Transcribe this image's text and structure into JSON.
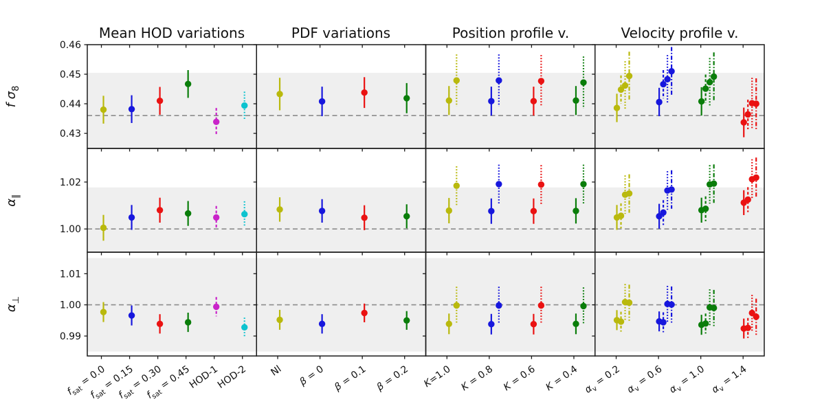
{
  "chart_data": {
    "type": "scatter",
    "title": "",
    "description": "Grid of error-bar points: 3 parameter rows x 4 variation columns, gray 1-sigma band and dashed fiducial line per row",
    "point_format": [
      "category_index",
      "color",
      "linestyle",
      "value",
      "error_half",
      "x_offset_px"
    ],
    "colors": {
      "yellow": "#b9b90d",
      "blue": "#1717dd",
      "red": "#ea1212",
      "green": "#0a7d0a",
      "magenta": "#c923c9",
      "cyan": "#0cc3cf"
    },
    "band_color": "#efefef",
    "fiducial_line_color": "#8c8c8c",
    "spine_color": "#1a1a1a",
    "rows": [
      {
        "ylabel": "*f* *σ*_{8}",
        "ylim": [
          0.4249,
          0.46
        ],
        "ticks": [
          "0.43",
          "0.44",
          "0.45",
          "0.46"
        ],
        "fiducial": 0.436,
        "band": [
          0.4215,
          0.4505
        ]
      },
      {
        "ylabel": "*α*_{∥}",
        "ylim": [
          0.9901,
          1.0343
        ],
        "ticks": [
          "1.00",
          "1.02"
        ],
        "fiducial": 1.0,
        "band": [
          0.9823,
          1.0177
        ]
      },
      {
        "ylabel": "*α*_{⊥}",
        "ylim": [
          0.9836,
          1.0169
        ],
        "ticks": [
          "0.99",
          "1.00",
          "1.01"
        ],
        "fiducial": 1.0,
        "band": [
          0.985,
          1.015
        ]
      }
    ],
    "columns": [
      {
        "title": "Mean HOD variations",
        "categories": [
          "*f*_{sat} = 0.0",
          "*f*_{sat} = 0.15",
          "*f*_{sat} = 0.30",
          "*f*_{sat} = 0.45",
          "HOD-1",
          "HOD-2"
        ]
      },
      {
        "title": "PDF variations",
        "categories": [
          "Nl",
          "*β* = 0",
          "*β* = 0.1",
          "*β* = 0.2"
        ]
      },
      {
        "title": "Position profile v.",
        "categories": [
          "*K*=1.0",
          "*K* = 0.8",
          "*K* = 0.6",
          "*K* = 0.4"
        ]
      },
      {
        "title": "Velocity profile v.",
        "categories": [
          "*α*_{v} = 0.2",
          "*α*_{v} = 0.6",
          "*α*_{v} = 1.0",
          "*α*_{v} = 1.4"
        ]
      }
    ],
    "points": {
      "r0c0": [
        [
          0,
          "yellow",
          "solid",
          0.438,
          0.0047,
          3
        ],
        [
          1,
          "blue",
          "solid",
          0.4382,
          0.0047,
          3
        ],
        [
          2,
          "red",
          "solid",
          0.441,
          0.0047,
          3
        ],
        [
          3,
          "green",
          "solid",
          0.4467,
          0.0047,
          3
        ],
        [
          4,
          "magenta",
          "dashed",
          0.4339,
          0.0047,
          3
        ],
        [
          5,
          "cyan",
          "dotted",
          0.4394,
          0.0047,
          3
        ]
      ],
      "r0c1": [
        [
          0,
          "yellow",
          "solid",
          0.4433,
          0.0055,
          3
        ],
        [
          1,
          "blue",
          "solid",
          0.4408,
          0.005,
          3
        ],
        [
          2,
          "red",
          "solid",
          0.4438,
          0.0052,
          3
        ],
        [
          3,
          "green",
          "solid",
          0.4419,
          0.0051,
          3
        ]
      ],
      "r0c2": [
        [
          0,
          "yellow",
          "solid",
          0.4411,
          0.0049,
          3
        ],
        [
          0,
          "yellow",
          "dotted",
          0.4479,
          0.0088,
          14
        ],
        [
          1,
          "blue",
          "solid",
          0.4409,
          0.0049,
          3
        ],
        [
          1,
          "blue",
          "dotted",
          0.4479,
          0.0088,
          14
        ],
        [
          2,
          "red",
          "solid",
          0.4409,
          0.0049,
          3
        ],
        [
          2,
          "red",
          "dotted",
          0.4477,
          0.0088,
          14
        ],
        [
          3,
          "green",
          "solid",
          0.4411,
          0.0049,
          3
        ],
        [
          3,
          "green",
          "dotted",
          0.4472,
          0.0088,
          14
        ]
      ],
      "r0c3": [
        [
          0,
          "yellow",
          "solid",
          0.4386,
          0.0048,
          1
        ],
        [
          0,
          "yellow",
          "dashed",
          0.4448,
          0.0048,
          7
        ],
        [
          0,
          "yellow",
          "dotted",
          0.4462,
          0.0082,
          13
        ],
        [
          0,
          "yellow",
          "dashdot",
          0.4494,
          0.0082,
          19
        ],
        [
          1,
          "blue",
          "solid",
          0.4406,
          0.0048,
          1
        ],
        [
          1,
          "blue",
          "dashed",
          0.4466,
          0.0048,
          7
        ],
        [
          1,
          "blue",
          "dotted",
          0.4483,
          0.0082,
          13
        ],
        [
          1,
          "blue",
          "dashdot",
          0.451,
          0.0082,
          19
        ],
        [
          2,
          "green",
          "solid",
          0.4408,
          0.0048,
          1
        ],
        [
          2,
          "green",
          "dashed",
          0.4451,
          0.0048,
          7
        ],
        [
          2,
          "green",
          "dotted",
          0.4473,
          0.0082,
          13
        ],
        [
          2,
          "green",
          "dashdot",
          0.4492,
          0.0082,
          19
        ],
        [
          3,
          "red",
          "solid",
          0.4337,
          0.005,
          1
        ],
        [
          3,
          "red",
          "dashed",
          0.4364,
          0.005,
          7
        ],
        [
          3,
          "red",
          "dotted",
          0.4402,
          0.0086,
          13
        ],
        [
          3,
          "red",
          "dashdot",
          0.44,
          0.0086,
          19
        ]
      ],
      "r1c0": [
        [
          0,
          "yellow",
          "solid",
          1.0005,
          0.0055,
          3
        ],
        [
          1,
          "blue",
          "solid",
          1.0049,
          0.0053,
          3
        ],
        [
          2,
          "red",
          "solid",
          1.008,
          0.0053,
          3
        ],
        [
          3,
          "green",
          "solid",
          1.0066,
          0.0053,
          3
        ],
        [
          4,
          "magenta",
          "dashed",
          1.0049,
          0.0049,
          3
        ],
        [
          5,
          "cyan",
          "dotted",
          1.0063,
          0.0055,
          3
        ]
      ],
      "r1c1": [
        [
          0,
          "yellow",
          "solid",
          1.0083,
          0.0052,
          3
        ],
        [
          1,
          "blue",
          "solid",
          1.0077,
          0.005,
          3
        ],
        [
          2,
          "red",
          "solid",
          1.0048,
          0.0053,
          3
        ],
        [
          3,
          "green",
          "solid",
          1.0054,
          0.0051,
          3
        ]
      ],
      "r1c2": [
        [
          0,
          "yellow",
          "solid",
          1.0078,
          0.0054,
          3
        ],
        [
          0,
          "yellow",
          "dotted",
          1.0184,
          0.0083,
          14
        ],
        [
          1,
          "blue",
          "solid",
          1.0076,
          0.0054,
          3
        ],
        [
          1,
          "blue",
          "dotted",
          1.0191,
          0.0083,
          14
        ],
        [
          2,
          "red",
          "solid",
          1.0076,
          0.0054,
          3
        ],
        [
          2,
          "red",
          "dotted",
          1.0189,
          0.0083,
          14
        ],
        [
          3,
          "green",
          "solid",
          1.0077,
          0.0054,
          3
        ],
        [
          3,
          "green",
          "dotted",
          1.0191,
          0.0083,
          14
        ]
      ],
      "r1c3": [
        [
          0,
          "yellow",
          "solid",
          1.0049,
          0.0053,
          1
        ],
        [
          0,
          "yellow",
          "dashed",
          1.0056,
          0.0053,
          7
        ],
        [
          0,
          "yellow",
          "dotted",
          1.0146,
          0.0082,
          13
        ],
        [
          0,
          "yellow",
          "dashdot",
          1.0151,
          0.0082,
          19
        ],
        [
          1,
          "blue",
          "solid",
          1.0054,
          0.0053,
          1
        ],
        [
          1,
          "blue",
          "dashed",
          1.007,
          0.0053,
          7
        ],
        [
          1,
          "blue",
          "dotted",
          1.0164,
          0.0082,
          13
        ],
        [
          1,
          "blue",
          "dashdot",
          1.0168,
          0.0082,
          19
        ],
        [
          2,
          "green",
          "solid",
          1.008,
          0.0053,
          1
        ],
        [
          2,
          "green",
          "dashed",
          1.0086,
          0.0053,
          7
        ],
        [
          2,
          "green",
          "dotted",
          1.019,
          0.0082,
          13
        ],
        [
          2,
          "green",
          "dashdot",
          1.0193,
          0.0082,
          19
        ],
        [
          3,
          "red",
          "solid",
          1.0112,
          0.0053,
          1
        ],
        [
          3,
          "red",
          "dashed",
          1.0125,
          0.0053,
          7
        ],
        [
          3,
          "red",
          "dotted",
          1.0212,
          0.0085,
          13
        ],
        [
          3,
          "red",
          "dashdot",
          1.0219,
          0.0085,
          19
        ]
      ],
      "r2c0": [
        [
          0,
          "yellow",
          "solid",
          0.9977,
          0.0032,
          3
        ],
        [
          1,
          "blue",
          "solid",
          0.9966,
          0.0032,
          3
        ],
        [
          2,
          "red",
          "solid",
          0.9939,
          0.0031,
          3
        ],
        [
          3,
          "green",
          "solid",
          0.9944,
          0.0031,
          3
        ],
        [
          4,
          "magenta",
          "dashed",
          0.9994,
          0.0031,
          3
        ],
        [
          5,
          "cyan",
          "dotted",
          0.9928,
          0.0031,
          3
        ]
      ],
      "r2c1": [
        [
          0,
          "yellow",
          "solid",
          0.9952,
          0.0032,
          3
        ],
        [
          1,
          "blue",
          "solid",
          0.9939,
          0.0031,
          3
        ],
        [
          2,
          "red",
          "solid",
          0.9974,
          0.003,
          3
        ],
        [
          3,
          "green",
          "solid",
          0.995,
          0.003,
          3
        ]
      ],
      "r2c2": [
        [
          0,
          "yellow",
          "solid",
          0.9939,
          0.0033,
          3
        ],
        [
          0,
          "yellow",
          "dotted",
          0.9998,
          0.006,
          14
        ],
        [
          1,
          "blue",
          "solid",
          0.9938,
          0.0033,
          3
        ],
        [
          1,
          "blue",
          "dotted",
          0.9998,
          0.006,
          14
        ],
        [
          2,
          "red",
          "solid",
          0.9938,
          0.0033,
          3
        ],
        [
          2,
          "red",
          "dotted",
          0.9998,
          0.006,
          14
        ],
        [
          3,
          "green",
          "solid",
          0.9939,
          0.0033,
          3
        ],
        [
          3,
          "green",
          "dotted",
          0.9996,
          0.006,
          14
        ]
      ],
      "r2c3": [
        [
          0,
          "yellow",
          "solid",
          0.9951,
          0.0032,
          1
        ],
        [
          0,
          "yellow",
          "dashed",
          0.9946,
          0.0032,
          7
        ],
        [
          0,
          "yellow",
          "dotted",
          1.0009,
          0.0058,
          13
        ],
        [
          0,
          "yellow",
          "dashdot",
          1.0007,
          0.0058,
          19
        ],
        [
          1,
          "blue",
          "solid",
          0.9947,
          0.0032,
          1
        ],
        [
          1,
          "blue",
          "dashed",
          0.9944,
          0.0032,
          7
        ],
        [
          1,
          "blue",
          "dotted",
          1.0003,
          0.0058,
          13
        ],
        [
          1,
          "blue",
          "dashdot",
          1.0001,
          0.0058,
          19
        ],
        [
          2,
          "green",
          "solid",
          0.9936,
          0.0032,
          1
        ],
        [
          2,
          "green",
          "dashed",
          0.994,
          0.0032,
          7
        ],
        [
          2,
          "green",
          "dotted",
          0.9992,
          0.0058,
          13
        ],
        [
          2,
          "green",
          "dashdot",
          0.999,
          0.0058,
          19
        ],
        [
          3,
          "red",
          "solid",
          0.9924,
          0.0032,
          1
        ],
        [
          3,
          "red",
          "dashed",
          0.9926,
          0.0032,
          7
        ],
        [
          3,
          "red",
          "dotted",
          0.9974,
          0.0058,
          13
        ],
        [
          3,
          "red",
          "dashdot",
          0.9962,
          0.0058,
          19
        ]
      ]
    }
  }
}
